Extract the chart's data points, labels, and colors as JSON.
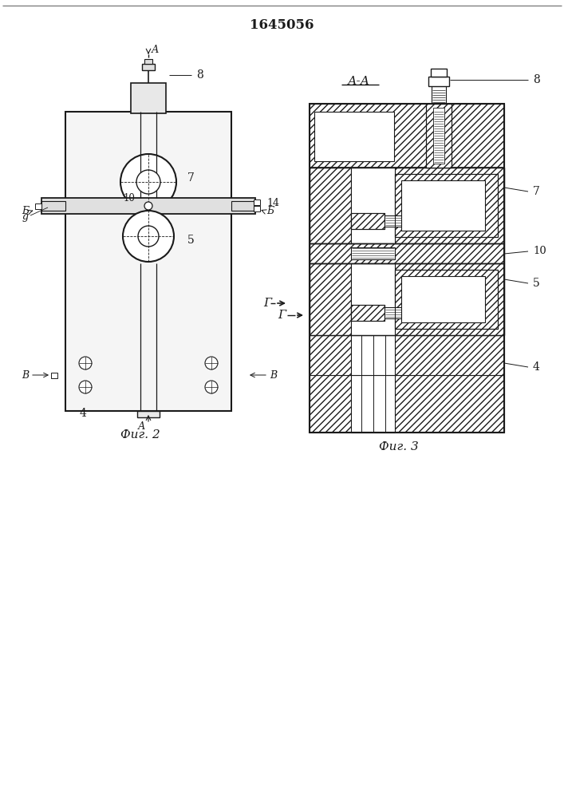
{
  "title": "1645056",
  "fig2_caption": "Фиг. 2",
  "fig3_caption": "Фиг. 3",
  "aa_label": "А-А",
  "gamma_label": "Г",
  "background_color": "#ffffff",
  "line_color": "#1a1a1a"
}
